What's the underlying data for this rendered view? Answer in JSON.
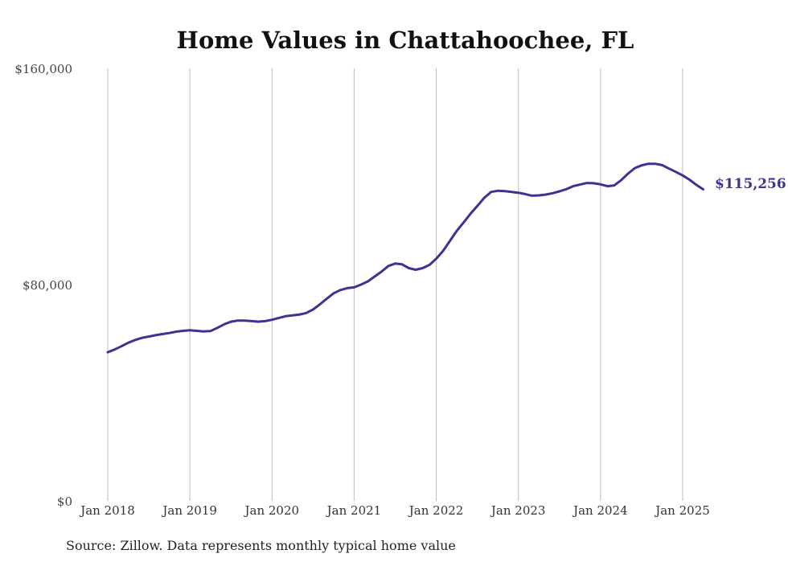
{
  "chart_data": {
    "type": "line",
    "title": "Home Values in Chattahoochee, FL",
    "xlabel": "",
    "ylabel": "",
    "ylim": [
      0,
      160000
    ],
    "yticks": [
      {
        "value": 0,
        "label": "$0"
      },
      {
        "value": 80000,
        "label": "$80,000"
      },
      {
        "value": 160000,
        "label": "$160,000"
      }
    ],
    "xticks": [
      {
        "value": "2018-01",
        "label": "Jan 2018"
      },
      {
        "value": "2019-01",
        "label": "Jan 2019"
      },
      {
        "value": "2020-01",
        "label": "Jan 2020"
      },
      {
        "value": "2021-01",
        "label": "Jan 2021"
      },
      {
        "value": "2022-01",
        "label": "Jan 2022"
      },
      {
        "value": "2023-01",
        "label": "Jan 2023"
      },
      {
        "value": "2024-01",
        "label": "Jan 2024"
      },
      {
        "value": "2025-01",
        "label": "Jan 2025"
      }
    ],
    "xgrid": true,
    "ygrid": false,
    "line_color": "#3b3591",
    "end_label": "$115,256",
    "source": "Source: Zillow. Data represents monthly typical home value",
    "series": [
      {
        "x": [
          "2018-01",
          "2018-02",
          "2018-03",
          "2018-04",
          "2018-05",
          "2018-06",
          "2018-07",
          "2018-08",
          "2018-09",
          "2018-10",
          "2018-11",
          "2018-12",
          "2019-01",
          "2019-02",
          "2019-03",
          "2019-04",
          "2019-05",
          "2019-06",
          "2019-07",
          "2019-08",
          "2019-09",
          "2019-10",
          "2019-11",
          "2019-12",
          "2020-01",
          "2020-02",
          "2020-03",
          "2020-04",
          "2020-05",
          "2020-06",
          "2020-07",
          "2020-08",
          "2020-09",
          "2020-10",
          "2020-11",
          "2020-12",
          "2021-01",
          "2021-02",
          "2021-03",
          "2021-04",
          "2021-05",
          "2021-06",
          "2021-07",
          "2021-08",
          "2021-09",
          "2021-10",
          "2021-11",
          "2021-12",
          "2022-01",
          "2022-02",
          "2022-03",
          "2022-04",
          "2022-05",
          "2022-06",
          "2022-07",
          "2022-08",
          "2022-09",
          "2022-10",
          "2022-11",
          "2022-12",
          "2023-01",
          "2023-02",
          "2023-03",
          "2023-04",
          "2023-05",
          "2023-06",
          "2023-07",
          "2023-08",
          "2023-09",
          "2023-10",
          "2023-11",
          "2023-12",
          "2024-01",
          "2024-02",
          "2024-03",
          "2024-04",
          "2024-05",
          "2024-06",
          "2024-07",
          "2024-08",
          "2024-09",
          "2024-10",
          "2024-11",
          "2024-12",
          "2025-01",
          "2025-02",
          "2025-03",
          "2025-04"
        ],
        "values": [
          55000,
          56000,
          57200,
          58500,
          59500,
          60300,
          60800,
          61300,
          61700,
          62100,
          62600,
          62900,
          63100,
          62900,
          62700,
          62800,
          64000,
          65300,
          66300,
          66700,
          66700,
          66500,
          66300,
          66500,
          67000,
          67700,
          68300,
          68600,
          68900,
          69500,
          70800,
          72700,
          74800,
          76800,
          78000,
          78700,
          79000,
          80000,
          81200,
          83000,
          84800,
          86900,
          87800,
          87500,
          86100,
          85500,
          86100,
          87300,
          89600,
          92500,
          96200,
          99900,
          103000,
          106200,
          109100,
          112100,
          114300,
          114700,
          114600,
          114300,
          114000,
          113500,
          112900,
          113000,
          113300,
          113800,
          114500,
          115300,
          116400,
          117000,
          117600,
          117500,
          117100,
          116400,
          116700,
          118600,
          121000,
          123100,
          124100,
          124700,
          124700,
          124200,
          122900,
          121700,
          120400,
          118800,
          116900,
          115256
        ]
      }
    ]
  }
}
